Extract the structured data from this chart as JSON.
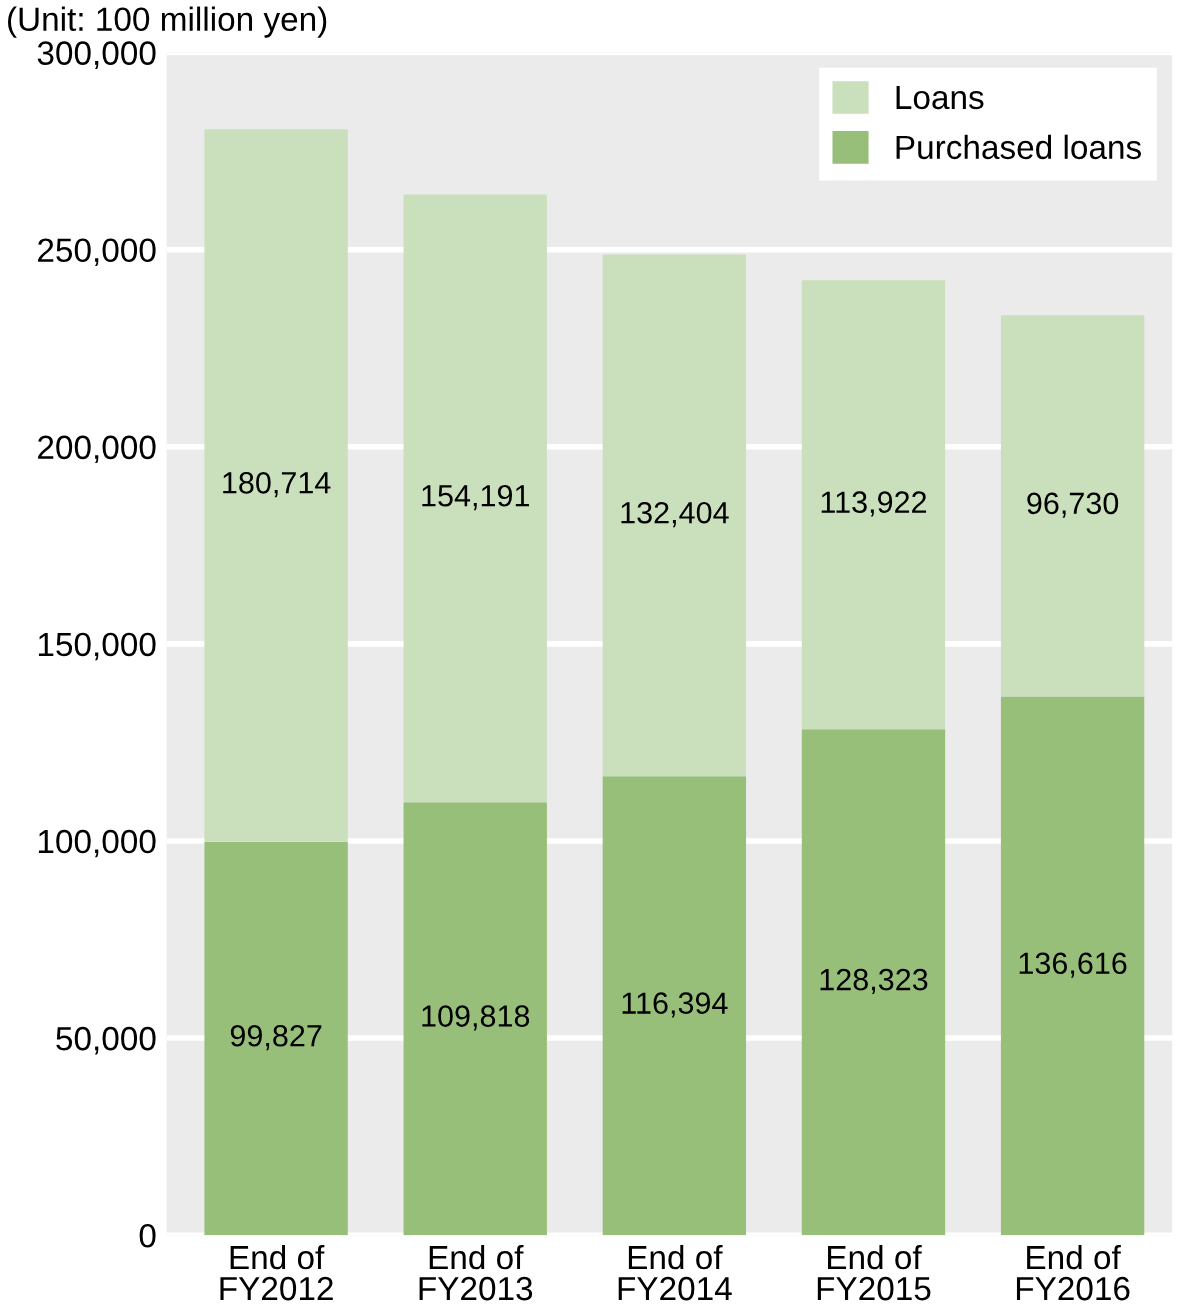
{
  "chart_data": {
    "type": "bar",
    "stacked": true,
    "categories": [
      "End of\nFY2012",
      "End of\nFY2013",
      "End of\nFY2014",
      "End of\nFY2015",
      "End of\nFY2016"
    ],
    "series": [
      {
        "name": "Purchased loans",
        "color": "#98bf7a",
        "values": [
          99827,
          109818,
          116394,
          128323,
          136616
        ],
        "value_labels": [
          "99,827",
          "109,818",
          "116,394",
          "128,323",
          "136,616"
        ]
      },
      {
        "name": "Loans",
        "color": "#cadfbb",
        "values": [
          180714,
          154191,
          132404,
          113922,
          96730
        ],
        "value_labels": [
          "180,714",
          "154,191",
          "132,404",
          "113,922",
          "96,730"
        ]
      }
    ],
    "ylim": [
      0,
      300000
    ],
    "yticks": [
      {
        "value": 0,
        "label": "0"
      },
      {
        "value": 50000,
        "label": "50,000"
      },
      {
        "value": 100000,
        "label": "100,000"
      },
      {
        "value": 150000,
        "label": "150,000"
      },
      {
        "value": 200000,
        "label": "200,000"
      },
      {
        "value": 250000,
        "label": "250,000"
      },
      {
        "value": 300000,
        "label": "300,000"
      }
    ],
    "grid": "y",
    "legend": "top right",
    "annotations": [
      "(Unit: 100 million yen)"
    ]
  }
}
